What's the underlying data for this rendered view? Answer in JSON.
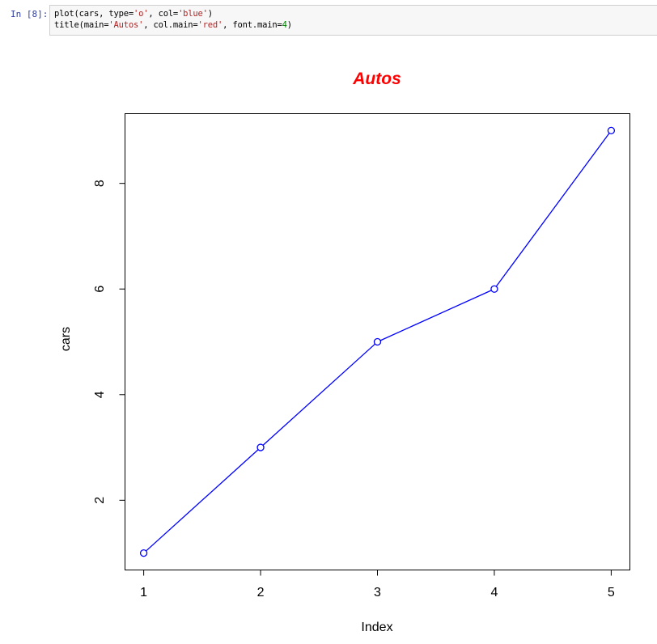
{
  "cell": {
    "prompt": "In [8]:",
    "code": {
      "line1": {
        "pre": "plot(cars, type=",
        "s1": "'o'",
        "mid": ", col=",
        "s2": "'blue'",
        "post": ")"
      },
      "line2": {
        "pre": "title(main=",
        "s1": "'Autos'",
        "mid": ", col.main=",
        "s2": "'red'",
        "mid2": ", font.main=",
        "num": "4",
        "post": ")"
      }
    }
  },
  "chart_data": {
    "type": "line",
    "title": "Autos",
    "title_color": "#ff0000",
    "xlabel": "Index",
    "ylabel": "cars",
    "series": [
      {
        "x": [
          1,
          2,
          3,
          4,
          5
        ],
        "values": [
          1,
          3,
          5,
          6,
          9
        ],
        "color": "#0000ff",
        "markers": "open-circle"
      }
    ],
    "x_ticks": [
      "1",
      "2",
      "3",
      "4",
      "5"
    ],
    "y_ticks": [
      "2",
      "4",
      "6",
      "8"
    ],
    "xlim": [
      0.84,
      5.16
    ],
    "ylim": [
      0.68,
      9.32
    ],
    "grid": false,
    "legend": "none"
  }
}
